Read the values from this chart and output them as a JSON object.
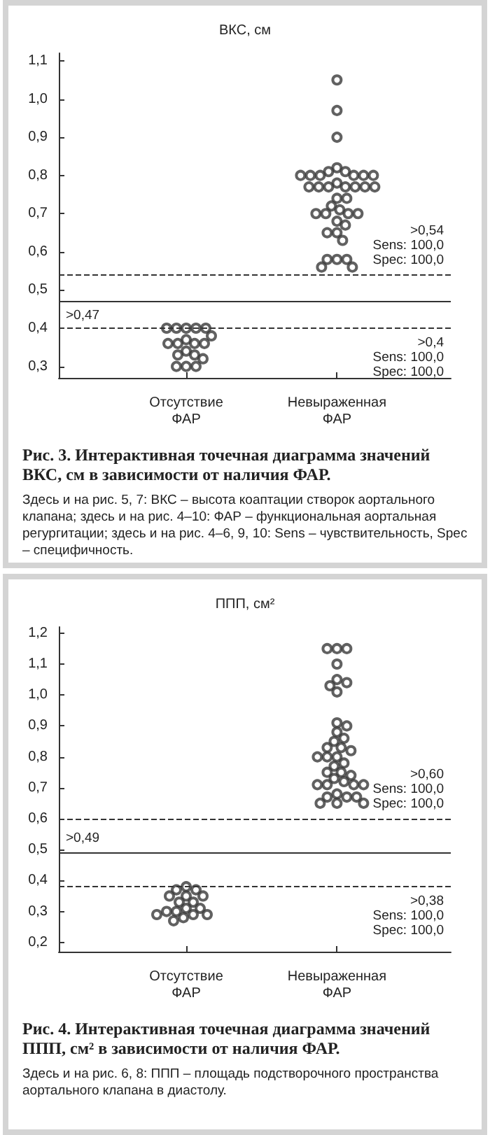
{
  "chart_data": [
    {
      "type": "scatter",
      "title": "Рис. 3. Интерактивная точечная диаграмма значений ВКС, см в зависимости от наличия ФАР.",
      "ylabel": "ВКС, см",
      "annotations": [
        "Здесь и на рис. 5, 7: ВКС – высота коаптации створок аортального клапана; здесь и на рис. 4–10: ФАР – функциональная аортальная регургитации; здесь и на рис. 4–6, 9, 10: Sens – чувствительность, Spec – специфичность."
      ],
      "categories": [
        "Отсутствие ФАР",
        "Невыраженная ФАР"
      ],
      "series": [
        {
          "color": "#3a3a3a",
          "x": [
            "Отсутствие ФАР",
            "Отсутствие ФАР",
            "Отсутствие ФАР",
            "Отсутствие ФАР",
            "Отсутствие ФАР",
            "Отсутствие ФАР",
            "Отсутствие ФАР",
            "Отсутствие ФАР",
            "Отсутствие ФАР",
            "Отсутствие ФАР",
            "Отсутствие ФАР",
            "Отсутствие ФАР",
            "Отсутствие ФАР",
            "Отсутствие ФАР",
            "Отсутствие ФАР",
            "Отсутствие ФАР",
            "Отсутствие ФАР",
            "Отсутствие ФАР"
          ],
          "values": [
            0.4,
            0.4,
            0.4,
            0.4,
            0.4,
            0.38,
            0.37,
            0.36,
            0.36,
            0.36,
            0.36,
            0.34,
            0.33,
            0.33,
            0.32,
            0.3,
            0.3,
            0.3
          ]
        },
        {
          "color": "#3a3a3a",
          "x": [
            "Невыраженная ФАР",
            "Невыраженная ФАР",
            "Невыраженная ФАР",
            "Невыраженная ФАР",
            "Невыраженная ФАР",
            "Невыраженная ФАР",
            "Невыраженная ФАР",
            "Невыраженная ФАР",
            "Невыраженная ФАР",
            "Невыраженная ФАР",
            "Невыраженная ФАР",
            "Невыраженная ФАР",
            "Невыраженная ФАР",
            "Невыраженная ФАР",
            "Невыраженная ФАР",
            "Невыраженная ФАР",
            "Невыраженная ФАР",
            "Невыраженная ФАР",
            "Невыраженная ФАР",
            "Невыраженная ФАР",
            "Невыраженная ФАР",
            "Невыраженная ФАР",
            "Невыраженная ФАР",
            "Невыраженная ФАР",
            "Невыраженная ФАР",
            "Невыраженная ФАР",
            "Невыраженная ФАР",
            "Невыраженная ФАР",
            "Невыраженная ФАР",
            "Невыраженная ФАР",
            "Невыраженная ФАР",
            "Невыраженная ФАР",
            "Невыраженная ФАР",
            "Невыраженная ФАР",
            "Невыраженная ФАР",
            "Невыраженная ФАР",
            "Невыраженная ФАР",
            "Невыраженная ФАР"
          ],
          "values": [
            1.05,
            0.97,
            0.9,
            0.82,
            0.81,
            0.81,
            0.8,
            0.8,
            0.8,
            0.8,
            0.8,
            0.8,
            0.78,
            0.77,
            0.77,
            0.77,
            0.77,
            0.77,
            0.77,
            0.77,
            0.74,
            0.74,
            0.72,
            0.71,
            0.7,
            0.7,
            0.7,
            0.7,
            0.68,
            0.67,
            0.65,
            0.65,
            0.63,
            0.58,
            0.58,
            0.58,
            0.56,
            0.56
          ]
        }
      ],
      "marker": "circle",
      "ylim": [
        0.27,
        1.12
      ],
      "yticks": [
        {
          "value": 0.3,
          "label": "0,3"
        },
        {
          "value": 0.4,
          "label": "0,4"
        },
        {
          "value": 0.5,
          "label": "0,5"
        },
        {
          "value": 0.6,
          "label": "0,6"
        },
        {
          "value": 0.7,
          "label": "0,7"
        },
        {
          "value": 0.8,
          "label": "0,8"
        },
        {
          "value": 0.9,
          "label": "0,9"
        },
        {
          "value": 1.0,
          "label": "1,0"
        },
        {
          "value": 1.1,
          "label": "1,1"
        }
      ],
      "ref_lines": [
        {
          "axis": "y",
          "value": 0.54,
          "label": ">0,54\nSens: 100,0\nSpec: 100,0",
          "line_style": "dashed",
          "color": "#333333"
        },
        {
          "axis": "y",
          "value": 0.47,
          "label": ">0,47",
          "line_style": "solid",
          "color": "#333333"
        },
        {
          "axis": "y",
          "value": 0.4,
          "label": ">0,4\nSens: 100,0\nSpec: 100,0",
          "line_style": "dashed",
          "color": "#333333"
        }
      ]
    },
    {
      "type": "scatter",
      "title": "Рис. 4. Интерактивная точечная диаграмма значений ППП, см² в зависимости от наличия ФАР.",
      "ylabel": "ППП, см²",
      "annotations": [
        "Здесь и на рис. 6, 8: ППП – площадь подстворочного пространства аортального клапана в диастолу."
      ],
      "categories": [
        "Отсутствие ФАР",
        "Невыраженная ФАР"
      ],
      "series": [
        {
          "color": "#3a3a3a",
          "x": [
            "Отсутствие ФАР",
            "Отсутствие ФАР",
            "Отсутствие ФАР",
            "Отсутствие ФАР",
            "Отсутствие ФАР",
            "Отсутствие ФАР",
            "Отсутствие ФАР",
            "Отсутствие ФАР",
            "Отсутствие ФАР",
            "Отсутствие ФАР",
            "Отсутствие ФАР",
            "Отсутствие ФАР",
            "Отсутствие ФАР",
            "Отсутствие ФАР",
            "Отсутствие ФАР",
            "Отсутствие ФАР",
            "Отсутствие ФАР"
          ],
          "values": [
            0.38,
            0.37,
            0.37,
            0.35,
            0.35,
            0.35,
            0.33,
            0.33,
            0.31,
            0.31,
            0.3,
            0.3,
            0.29,
            0.29,
            0.29,
            0.28,
            0.27
          ]
        },
        {
          "color": "#3a3a3a",
          "x": [
            "Невыраженная ФАР",
            "Невыраженная ФАР",
            "Невыраженная ФАР",
            "Невыраженная ФАР",
            "Невыраженная ФАР",
            "Невыраженная ФАР",
            "Невыраженная ФАР",
            "Невыраженная ФАР",
            "Невыраженная ФАР",
            "Невыраженная ФАР",
            "Невыраженная ФАР",
            "Невыраженная ФАР",
            "Невыраженная ФАР",
            "Невыраженная ФАР",
            "Невыраженная ФАР",
            "Невыраженная ФАР",
            "Невыраженная ФАР",
            "Невыраженная ФАР",
            "Невыраженная ФАР",
            "Невыраженная ФАР",
            "Невыраженная ФАР",
            "Невыраженная ФАР",
            "Невыраженная ФАР",
            "Невыраженная ФАР",
            "Невыраженная ФАР",
            "Невыраженная ФАР",
            "Невыраженная ФАР",
            "Невыраженная ФАР",
            "Невыраженная ФАР",
            "Невыраженная ФАР",
            "Невыраженная ФАР",
            "Невыраженная ФАР",
            "Невыраженная ФАР",
            "Невыраженная ФАР",
            "Невыраженная ФАР",
            "Невыраженная ФАР",
            "Невыраженная ФАР"
          ],
          "values": [
            1.15,
            1.15,
            1.15,
            1.1,
            1.05,
            1.04,
            1.03,
            1.01,
            0.91,
            0.9,
            0.88,
            0.86,
            0.85,
            0.83,
            0.83,
            0.82,
            0.8,
            0.8,
            0.8,
            0.78,
            0.77,
            0.75,
            0.75,
            0.74,
            0.73,
            0.72,
            0.71,
            0.71,
            0.71,
            0.71,
            0.68,
            0.67,
            0.67,
            0.67,
            0.65,
            0.65,
            0.65
          ]
        }
      ],
      "marker": "circle",
      "ylim": [
        0.17,
        1.22
      ],
      "yticks": [
        {
          "value": 0.2,
          "label": "0,2"
        },
        {
          "value": 0.3,
          "label": "0,3"
        },
        {
          "value": 0.4,
          "label": "0,4"
        },
        {
          "value": 0.5,
          "label": "0,5"
        },
        {
          "value": 0.6,
          "label": "0,6"
        },
        {
          "value": 0.7,
          "label": "0,7"
        },
        {
          "value": 0.8,
          "label": "0,8"
        },
        {
          "value": 0.9,
          "label": "0,9"
        },
        {
          "value": 1.0,
          "label": "1,0"
        },
        {
          "value": 1.1,
          "label": "1,1"
        },
        {
          "value": 1.2,
          "label": "1,2"
        }
      ],
      "ref_lines": [
        {
          "axis": "y",
          "value": 0.6,
          "label": ">0,60\nSens: 100,0\nSpec: 100,0",
          "line_style": "dashed",
          "color": "#333333"
        },
        {
          "axis": "y",
          "value": 0.49,
          "label": ">0,49",
          "line_style": "solid",
          "color": "#333333"
        },
        {
          "axis": "y",
          "value": 0.38,
          "label": ">0,38\nSens: 100,0\nSpec: 100,0",
          "line_style": "dashed",
          "color": "#333333"
        }
      ]
    }
  ]
}
